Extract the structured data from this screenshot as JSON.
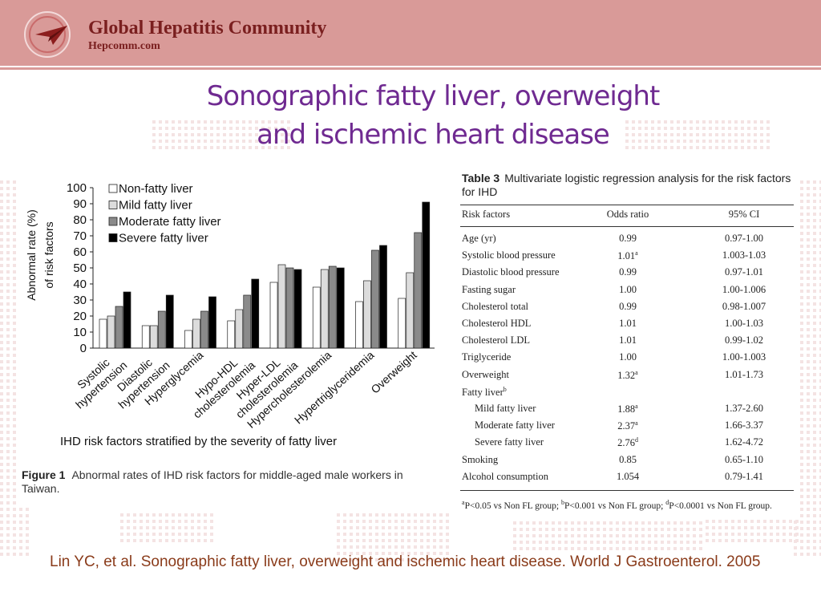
{
  "header": {
    "brand": "Global Hepatitis Community",
    "site": "Hepcomm.com",
    "colors": {
      "band": "#d99a98",
      "brand_text": "#7a1f1f"
    },
    "logo_icon": "paper-plane-circle-icon"
  },
  "slide": {
    "title_line1": "Sonographic fatty liver, overweight",
    "title_line2": "and ischemic heart disease",
    "citation": "Lin YC, et al. Sonographic fatty liver, overweight and ischemic heart disease. World J Gastroenterol. 2005"
  },
  "figure": {
    "label": "Figure 1",
    "caption": "Abnormal rates of IHD risk factors for middle-aged male workers in Taiwan."
  },
  "chart_data": {
    "type": "bar",
    "ylabel_line1": "Abnormal rate (%)",
    "ylabel_line2": "of risk factors",
    "xlabel": "IHD risk factors stratified by the severity of fatty liver",
    "ylim": [
      0,
      100
    ],
    "yticks": [
      0,
      10,
      20,
      30,
      40,
      50,
      60,
      70,
      80,
      90,
      100
    ],
    "legend_position": "top-left",
    "categories": [
      [
        "Systolic",
        "hypertension"
      ],
      [
        "Diastolic",
        "hypertension"
      ],
      [
        "Hyperglycemia"
      ],
      [
        "Hypo-HDL",
        "cholesterolemia"
      ],
      [
        "Hyper-LDL",
        "cholesterolemia"
      ],
      [
        "Hypercholesterolemia"
      ],
      [
        "Hypertriglyceridemia"
      ],
      [
        "Overweight"
      ]
    ],
    "series": [
      {
        "name": "Non-fatty liver",
        "color": "#ffffff",
        "values": [
          18,
          14,
          11,
          17,
          41,
          38,
          29,
          31
        ]
      },
      {
        "name": "Mild fatty liver",
        "color": "#dcdcdc",
        "values": [
          20,
          14,
          18,
          24,
          52,
          49,
          42,
          47
        ]
      },
      {
        "name": "Moderate fatty liver",
        "color": "#8a8a8a",
        "values": [
          26,
          23,
          23,
          33,
          50,
          51,
          61,
          72
        ]
      },
      {
        "name": "Severe fatty liver",
        "color": "#000000",
        "values": [
          35,
          33,
          32,
          43,
          49,
          50,
          64,
          91
        ]
      }
    ]
  },
  "table": {
    "label": "Table 3",
    "title": "Multivariate logistic regression analysis for the risk factors for IHD",
    "headers": [
      "Risk factors",
      "Odds ratio",
      "95% CI"
    ],
    "rows": [
      {
        "factor": "Age (yr)",
        "or": "0.99",
        "sup": "",
        "ci": "0.97-1.00",
        "indent": false
      },
      {
        "factor": "Systolic blood pressure",
        "or": "1.01",
        "sup": "a",
        "ci": "1.003-1.03",
        "indent": false
      },
      {
        "factor": "Diastolic blood pressure",
        "or": "0.99",
        "sup": "",
        "ci": "0.97-1.01",
        "indent": false
      },
      {
        "factor": "Fasting sugar",
        "or": "1.00",
        "sup": "",
        "ci": "1.00-1.006",
        "indent": false
      },
      {
        "factor": "Cholesterol total",
        "or": "0.99",
        "sup": "",
        "ci": "0.98-1.007",
        "indent": false
      },
      {
        "factor": "Cholesterol HDL",
        "or": "1.01",
        "sup": "",
        "ci": "1.00-1.03",
        "indent": false
      },
      {
        "factor": "Cholesterol LDL",
        "or": "1.01",
        "sup": "",
        "ci": "0.99-1.02",
        "indent": false
      },
      {
        "factor": "Triglyceride",
        "or": "1.00",
        "sup": "",
        "ci": "1.00-1.003",
        "indent": false
      },
      {
        "factor": "Overweight",
        "or": "1.32",
        "sup": "a",
        "ci": "1.01-1.73",
        "indent": false
      },
      {
        "factor": "Fatty liver",
        "factor_sup": "b",
        "or": "",
        "sup": "",
        "ci": "",
        "indent": false
      },
      {
        "factor": "Mild fatty liver",
        "or": "1.88",
        "sup": "a",
        "ci": "1.37-2.60",
        "indent": true
      },
      {
        "factor": "Moderate fatty liver",
        "or": "2.37",
        "sup": "a",
        "ci": "1.66-3.37",
        "indent": true
      },
      {
        "factor": "Severe fatty liver",
        "or": "2.76",
        "sup": "d",
        "ci": "1.62-4.72",
        "indent": true
      },
      {
        "factor": "Smoking",
        "or": "0.85",
        "sup": "",
        "ci": "0.65-1.10",
        "indent": false
      },
      {
        "factor": "Alcohol consumption",
        "or": "1.054",
        "sup": "",
        "ci": "0.79-1.41",
        "indent": false
      }
    ],
    "footnote": "aP<0.05 vs Non FL group; bP<0.001 vs Non FL group; dP<0.0001 vs Non FL group."
  }
}
